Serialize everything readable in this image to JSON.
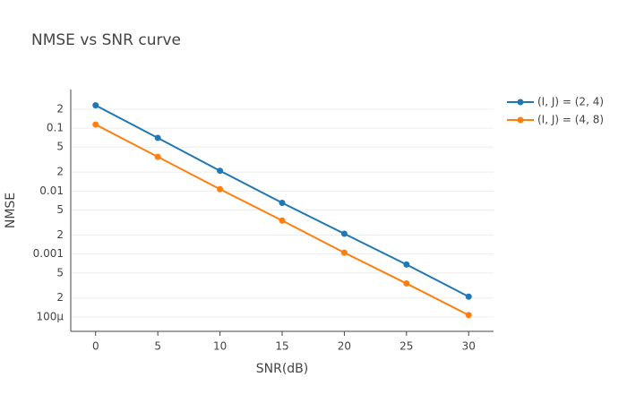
{
  "chart_data": {
    "type": "line",
    "title": "NMSE vs SNR curve",
    "x_label": "SNR(dB)",
    "y_label": "NMSE",
    "x": [
      0,
      5,
      10,
      15,
      20,
      25,
      30
    ],
    "series": [
      {
        "name": "(I, J) = (2, 4)",
        "color": "#1f77b4",
        "values": [
          0.23,
          0.07,
          0.021,
          0.0065,
          0.0021,
          0.00068,
          0.00021
        ]
      },
      {
        "name": "(I, J) = (4, 8)",
        "color": "#ff7f0e",
        "values": [
          0.114,
          0.035,
          0.0107,
          0.0034,
          0.00105,
          0.00034,
          0.000107
        ]
      }
    ],
    "xlim": [
      -2,
      32
    ],
    "xticks": [
      0,
      5,
      10,
      15,
      20,
      25,
      30
    ],
    "ylim": [
      5.9e-05,
      0.41
    ],
    "y_scale": "log",
    "yticks": [
      {
        "value": 0.0001,
        "label": "100µ"
      },
      {
        "value": 0.0002,
        "label": "2"
      },
      {
        "value": 0.0005,
        "label": "5"
      },
      0.001,
      {
        "value": 0.002,
        "label": "2"
      },
      {
        "value": 0.005,
        "label": "5"
      },
      0.01,
      {
        "value": 0.02,
        "label": "2"
      },
      {
        "value": 0.05,
        "label": "5"
      },
      0.1,
      {
        "value": 0.2,
        "label": "2"
      }
    ],
    "grid": true,
    "legend_position": "top-right"
  }
}
